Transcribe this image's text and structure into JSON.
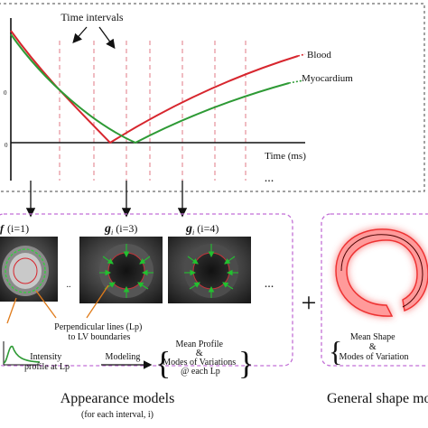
{
  "chart": {
    "time_intervals": "Time intervals",
    "x_axis_label": "Time (ms)",
    "ellipsis": "...",
    "legend": [
      {
        "name": "Blood",
        "color": "#d7262e"
      },
      {
        "name": "Myocardium",
        "color": "#2e9a35"
      }
    ]
  },
  "appearance": {
    "labels": [
      {
        "symbol": "f",
        "subscript": "",
        "index": "(i=1)"
      },
      {
        "symbol": "g",
        "subscript": "i",
        "index": "(i=3)"
      },
      {
        "symbol": "g",
        "subscript": "i",
        "index": "(i=4)"
      }
    ],
    "ellipsis": "...",
    "perpendicular_label": [
      "Perpendicular lines (Lp)",
      "to LV boundaries"
    ],
    "intensity_label": [
      "Intensity",
      "profile at Lp"
    ],
    "modeling_label": "Modeling",
    "mean_profile": [
      "Mean Profile",
      "&",
      "Modes of Variations",
      "@ each Lp"
    ],
    "title": "Appearance models",
    "subtitle": "(for each interval, i)"
  },
  "plus": "+",
  "shape": {
    "mean_shape": [
      "Mean Shape",
      "&",
      "Modes of Variation"
    ],
    "title": "General shape mo"
  },
  "colors": {
    "blood": "#d7262e",
    "myocardium": "#2e9a35",
    "dashed_guides": "#e07a86",
    "panel_border": "#c26fd6",
    "profile_arrow": "#1a9b2a",
    "orange_arrow": "#e07b1a",
    "shape_glow": "#ff4c4c"
  }
}
